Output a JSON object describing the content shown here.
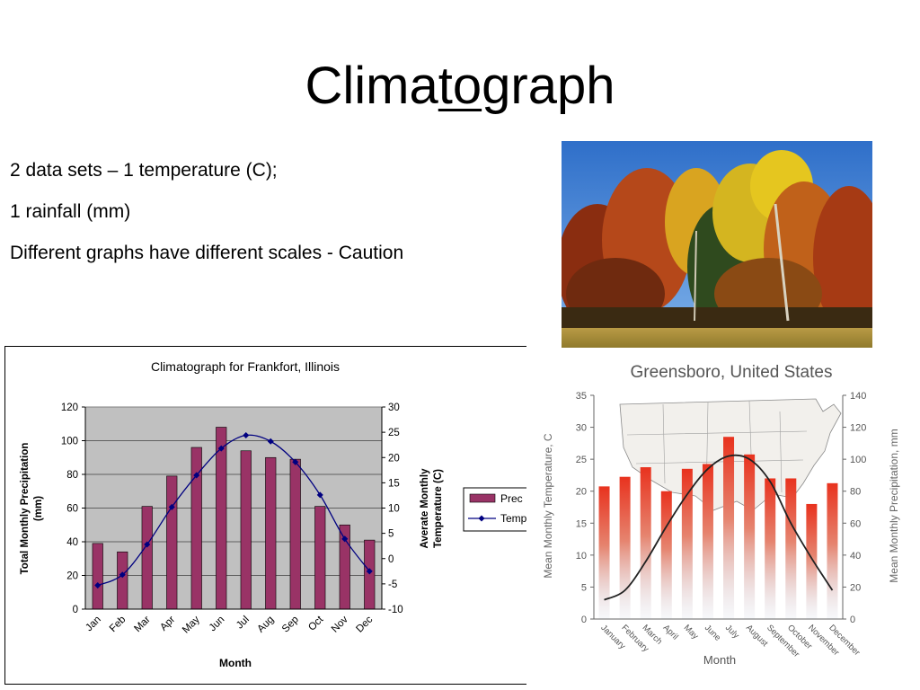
{
  "slide": {
    "title_pre": "Clima",
    "title_under": "to",
    "title_post": "graph",
    "bullets": [
      "2 data sets – 1 temperature (C);",
      "1 rainfall (mm)",
      "Different graphs have different scales - Caution"
    ]
  },
  "photo": {
    "icon": "autumn-forest-photo"
  },
  "chart_data": [
    {
      "type": "bar+line",
      "title": "Climatograph for Frankfort, Illinois",
      "xlabel": "Month",
      "ylabel": "Total Monthly Precipitation (mm)",
      "ylabel_lines": [
        "Total Monthly Precipitation",
        "(mm)"
      ],
      "y2label": "Averate Monthly Temperature (C)",
      "y2label_lines": [
        "Averate Monthly",
        "Temperature (C)"
      ],
      "categories": [
        "Jan",
        "Feb",
        "Mar",
        "Apr",
        "May",
        "Jun",
        "Jul",
        "Aug",
        "Sep",
        "Oct",
        "Nov",
        "Dec"
      ],
      "ylim": [
        0,
        120
      ],
      "yticks": [
        0,
        20,
        40,
        60,
        80,
        100,
        120
      ],
      "y2lim": [
        -10,
        30
      ],
      "y2ticks": [
        -10,
        -5,
        0,
        5,
        10,
        15,
        20,
        25,
        30
      ],
      "series": [
        {
          "name": "Precipitation",
          "legend_label": "Prec",
          "kind": "bar",
          "axis": "left",
          "color": "#993366",
          "values": [
            39,
            34,
            61,
            79,
            96,
            108,
            94,
            90,
            89,
            61,
            50,
            41
          ]
        },
        {
          "name": "Temperature",
          "legend_label": "Temp",
          "kind": "line",
          "axis": "right",
          "color": "#000080",
          "values": [
            -5.3,
            -3.2,
            2.8,
            10.2,
            16.5,
            21.8,
            24.4,
            23.2,
            19.1,
            12.6,
            3.9,
            -2.5
          ]
        }
      ],
      "plot_bg": "#c0c0c0",
      "legend": "right"
    },
    {
      "type": "bar+line",
      "title": "Greensboro, United States",
      "xlabel": "Month",
      "ylabel": "Mean Monthly Temperature, C",
      "y2label": "Mean Monthly Precipitation, mm",
      "categories": [
        "January",
        "February",
        "March",
        "April",
        "May",
        "June",
        "July",
        "August",
        "September",
        "October",
        "November",
        "December"
      ],
      "ylim": [
        0,
        35
      ],
      "yticks": [
        0,
        5,
        10,
        15,
        20,
        25,
        30,
        35
      ],
      "y2lim": [
        0,
        140
      ],
      "y2ticks": [
        0,
        20,
        40,
        60,
        80,
        100,
        120,
        140
      ],
      "series": [
        {
          "name": "Precipitation",
          "kind": "bar",
          "axis": "right",
          "color": "#e23a2a",
          "values": [
            83,
            89,
            95,
            80,
            94,
            97,
            114,
            103,
            88,
            88,
            72,
            85
          ]
        },
        {
          "name": "Temperature",
          "kind": "line",
          "axis": "left",
          "color": "#222222",
          "values": [
            3,
            4.5,
            9,
            14.5,
            19.5,
            23.5,
            25.5,
            25,
            21.5,
            15,
            9.5,
            4.5
          ]
        }
      ],
      "background": "usa-map",
      "grid": false
    }
  ]
}
